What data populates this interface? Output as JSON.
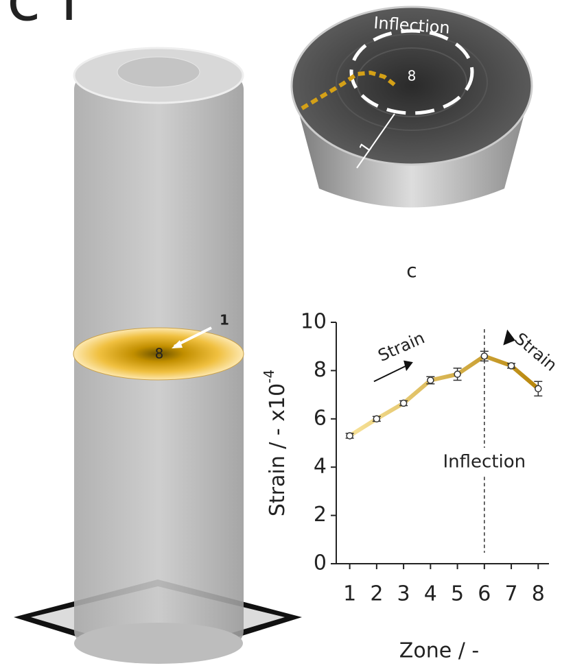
{
  "panel_label": "c i",
  "cylinder": {
    "outer_label": "1",
    "inner_label": "8"
  },
  "disk": {
    "title": "Inflection",
    "inner_label": "8",
    "outer_label": "1"
  },
  "chart_data": {
    "type": "line",
    "title": "c",
    "x_label": "Zone / -",
    "y_label": {
      "text": "Strain / - x10",
      "superscript": "-4"
    },
    "x": [
      1,
      2,
      3,
      4,
      5,
      6,
      7,
      8
    ],
    "series": [
      {
        "color": "#d9a520",
        "values": [
          5.3,
          6.0,
          6.65,
          7.6,
          7.85,
          8.6,
          8.2,
          7.25
        ],
        "errors": [
          0.1,
          0.1,
          0.1,
          0.15,
          0.25,
          0.2,
          0.1,
          0.3
        ]
      }
    ],
    "line_gradient": [
      "#f8e39a",
      "#b8860b"
    ],
    "xlim": [
      0.5,
      8.4
    ],
    "ylim": [
      0,
      10
    ],
    "xticks": [
      1,
      2,
      3,
      4,
      5,
      6,
      7,
      8
    ],
    "yticks": [
      0,
      2,
      4,
      6,
      8,
      10
    ],
    "inflection": {
      "x": 6,
      "label": "Inflection"
    },
    "annotations": [
      "Strain",
      "Strain"
    ]
  }
}
